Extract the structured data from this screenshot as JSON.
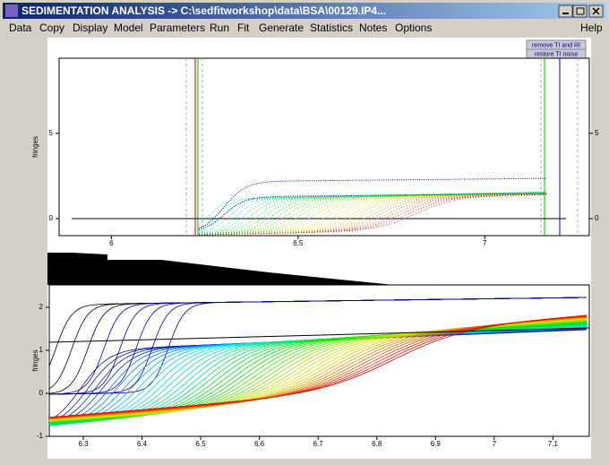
{
  "window": {
    "title": "SEDIMENTATION ANALYSIS -> C:\\sedfitworkshop\\data\\BSA\\00129.IP4..."
  },
  "menu": [
    "Data",
    "Copy",
    "Display",
    "Model",
    "Parameters",
    "Run",
    "Fit",
    "Generate",
    "Statistics",
    "Notes",
    "Options"
  ],
  "help": "Help",
  "buttons": [
    "remove TI and RI",
    "restore TI noise"
  ],
  "plots": [
    {
      "ylabel": "fringes",
      "xlim": [
        5.86,
        7.28
      ],
      "ylim": [
        -1,
        9.4
      ],
      "xticks": [
        6,
        6.5,
        7
      ],
      "yticks": [
        0,
        5
      ]
    },
    {
      "ylabel": "fringes",
      "xlim": [
        6.242,
        7.162
      ],
      "ylim": [
        -1,
        2.52
      ],
      "xticks": [
        6.3,
        6.4,
        6.5,
        6.6,
        6.7,
        6.8,
        6.9,
        7,
        7.1
      ],
      "yticks": [
        -1,
        0,
        1,
        2
      ]
    }
  ]
}
